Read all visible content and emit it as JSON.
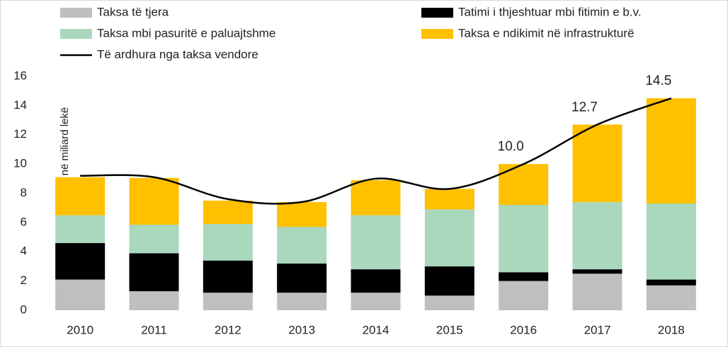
{
  "chart_data": {
    "type": "bar",
    "categories": [
      "2010",
      "2011",
      "2012",
      "2013",
      "2014",
      "2015",
      "2016",
      "2017",
      "2018"
    ],
    "y_label": "në miliard lekë",
    "ylim": [
      0,
      16
    ],
    "yticks": [
      0,
      2,
      4,
      6,
      8,
      10,
      12,
      14,
      16
    ],
    "grid": false,
    "series": [
      {
        "name": "Taksa të tjera",
        "color": "#bfbfbf",
        "values": [
          2.1,
          1.3,
          1.2,
          1.2,
          1.2,
          1.0,
          2.0,
          2.5,
          1.7
        ]
      },
      {
        "name": "Tatimi i thjeshtuar mbi fitimin e b.v.",
        "color": "#000000",
        "values": [
          2.5,
          2.6,
          2.2,
          2.0,
          1.6,
          2.0,
          0.6,
          0.3,
          0.4
        ]
      },
      {
        "name": "Taksa mbi pasuritë e paluajtshme",
        "color": "#a9d8bd",
        "values": [
          1.9,
          1.95,
          2.5,
          2.5,
          3.7,
          3.9,
          4.6,
          4.6,
          5.2
        ]
      },
      {
        "name": "Taksa e ndikimit në infrastrukturë",
        "color": "#ffc000",
        "values": [
          2.6,
          3.2,
          1.6,
          1.7,
          2.4,
          1.4,
          2.8,
          5.3,
          7.2
        ]
      },
      {
        "name": "Të ardhura nga taksa vendore",
        "type": "line",
        "color": "#000000",
        "values": [
          9.2,
          9.1,
          7.6,
          7.4,
          9.0,
          8.3,
          10,
          12.7,
          14.5
        ],
        "value_labels": [
          null,
          null,
          null,
          null,
          null,
          null,
          "10.0",
          "12.7",
          "14.5"
        ]
      }
    ]
  }
}
